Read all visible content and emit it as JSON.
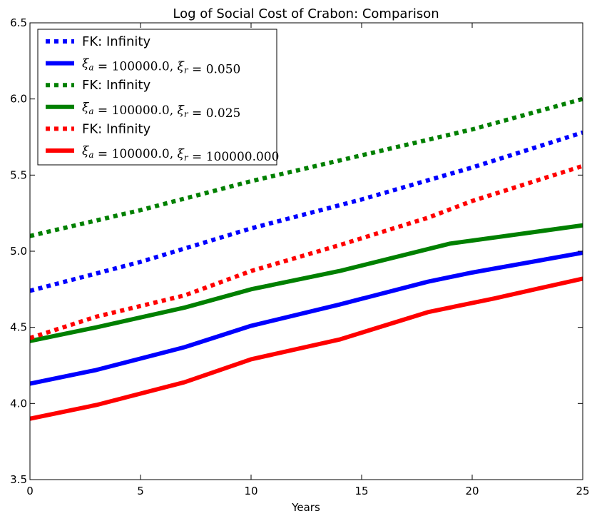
{
  "chart_data": {
    "type": "line",
    "title": "Log of Social Cost of Crabon: Comparison",
    "xlabel": "Years",
    "ylabel": "",
    "xlim": [
      0,
      25
    ],
    "ylim": [
      3.5,
      6.5
    ],
    "xticks": [
      0,
      5,
      10,
      15,
      20,
      25
    ],
    "yticks": [
      3.5,
      4.0,
      4.5,
      5.0,
      5.5,
      6.0,
      6.5
    ],
    "xtick_labels": [
      "0",
      "5",
      "10",
      "15",
      "20",
      "25"
    ],
    "ytick_labels": [
      "3.5",
      "4.0",
      "4.5",
      "5.0",
      "5.5",
      "6.0",
      "6.5"
    ],
    "grid": false,
    "legend_position": "top-left",
    "series": [
      {
        "name": "FK: Infinity",
        "label_kind": "text",
        "color": "#0000ff",
        "style": "dotted",
        "x": [
          0,
          5,
          10,
          15,
          20,
          25
        ],
        "y": [
          4.74,
          4.93,
          5.15,
          5.34,
          5.55,
          5.78
        ]
      },
      {
        "name": "ξa = 100000.0, ξr = 0.050",
        "label_kind": "math",
        "label_xr": "0.050",
        "color": "#0000ff",
        "style": "solid",
        "x": [
          0,
          3,
          7,
          10,
          14,
          18,
          20,
          25
        ],
        "y": [
          4.13,
          4.22,
          4.37,
          4.51,
          4.65,
          4.8,
          4.86,
          4.99
        ]
      },
      {
        "name": "FK: Infinity",
        "label_kind": "text",
        "color": "#008000",
        "style": "dotted",
        "x": [
          0,
          5,
          10,
          15,
          20,
          25
        ],
        "y": [
          5.1,
          5.27,
          5.46,
          5.63,
          5.8,
          6.0
        ]
      },
      {
        "name": "ξa = 100000.0, ξr = 0.025",
        "label_kind": "math",
        "label_xr": "0.025",
        "color": "#008000",
        "style": "solid",
        "x": [
          0,
          3,
          7,
          10,
          14,
          19,
          21,
          25
        ],
        "y": [
          4.41,
          4.5,
          4.63,
          4.75,
          4.87,
          5.05,
          5.09,
          5.17
        ]
      },
      {
        "name": "FK: Infinity",
        "label_kind": "text",
        "color": "#ff0000",
        "style": "dotted",
        "x": [
          0,
          3,
          7,
          10,
          14,
          18,
          20,
          25
        ],
        "y": [
          4.43,
          4.57,
          4.71,
          4.87,
          5.04,
          5.22,
          5.33,
          5.56
        ]
      },
      {
        "name": "ξa = 100000.0, ξr = 100000.000",
        "label_kind": "math",
        "label_xr": "100000.000",
        "color": "#ff0000",
        "style": "solid",
        "x": [
          0,
          3,
          7,
          10,
          14,
          18,
          21,
          25
        ],
        "y": [
          3.9,
          3.99,
          4.14,
          4.29,
          4.42,
          4.6,
          4.69,
          4.82
        ]
      }
    ]
  }
}
